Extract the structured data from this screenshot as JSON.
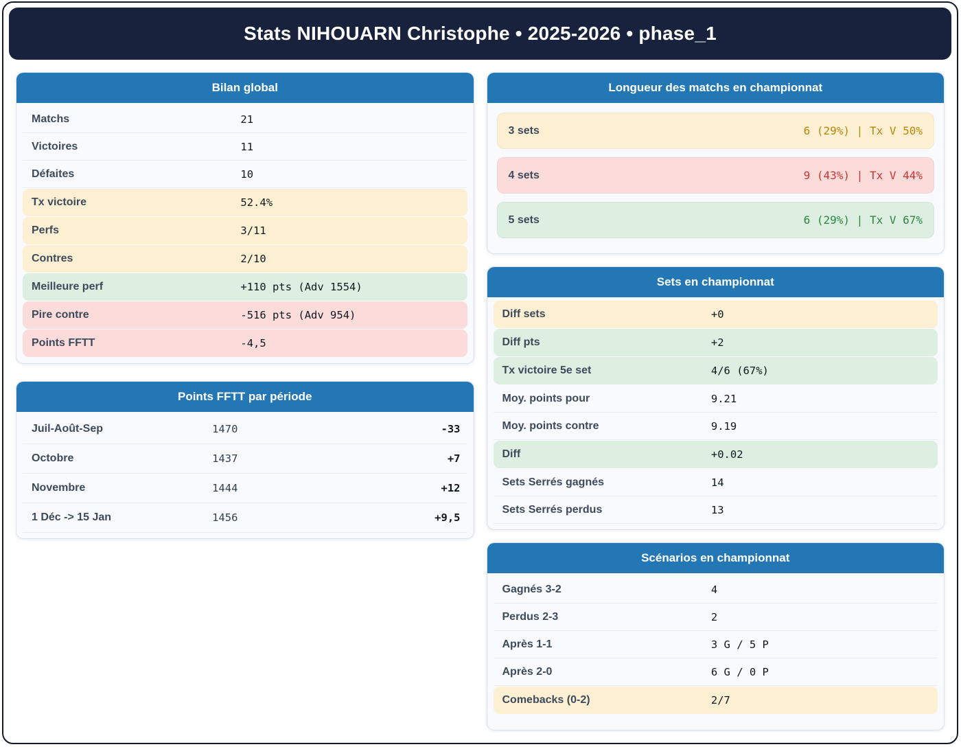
{
  "app": {
    "title": "Stats NIHOUARN Christophe • 2025-2026 • phase_1"
  },
  "colors": {
    "navy": "#18223d",
    "accent_blue": "#2277b4",
    "highlight_yellow": "#fdf0d2",
    "highlight_green": "#dcefe1",
    "highlight_red": "#fcdbdb",
    "text_amber": "#b8860b",
    "text_red": "#cc3333",
    "text_green": "#2e8540"
  },
  "cards": {
    "bilan": {
      "title": "Bilan global",
      "rows": [
        {
          "label": "Matchs",
          "value": "21",
          "tone": "plain"
        },
        {
          "label": "Victoires",
          "value": "11",
          "tone": "plain"
        },
        {
          "label": "Défaites",
          "value": "10",
          "tone": "plain"
        },
        {
          "label": "Tx victoire",
          "value": "52.4%",
          "tone": "yellow"
        },
        {
          "label": "Perfs",
          "value": "3/11",
          "tone": "yellow"
        },
        {
          "label": "Contres",
          "value": "2/10",
          "tone": "yellow"
        },
        {
          "label": "Meilleure perf",
          "value": "+110 pts (Adv 1554)",
          "tone": "green"
        },
        {
          "label": "Pire contre",
          "value": "-516 pts (Adv 954)",
          "tone": "red"
        },
        {
          "label": "Points FFTT",
          "value": "-4,5",
          "tone": "red"
        }
      ]
    },
    "points_periode": {
      "title": "Points FFTT par période",
      "rows": [
        {
          "label": "Juil-Août-Sep",
          "value": "1470",
          "delta": "-33"
        },
        {
          "label": "Octobre",
          "value": "1437",
          "delta": "+7"
        },
        {
          "label": "Novembre",
          "value": "1444",
          "delta": "+12"
        },
        {
          "label": "1 Déc -> 15 Jan",
          "value": "1456",
          "delta": "+9,5"
        }
      ]
    },
    "longueur": {
      "title": "Longueur des matchs en championnat",
      "rows": [
        {
          "label": "3 sets",
          "value": "6 (29%) | Tx V 50%",
          "tone": "yellow"
        },
        {
          "label": "4 sets",
          "value": "9 (43%) | Tx V 44%",
          "tone": "red"
        },
        {
          "label": "5 sets",
          "value": "6 (29%) | Tx V 67%",
          "tone": "green"
        }
      ]
    },
    "sets": {
      "title": "Sets en championnat",
      "rows": [
        {
          "label": "Diff sets",
          "value": "+0",
          "tone": "yellow"
        },
        {
          "label": "Diff pts",
          "value": "+2",
          "tone": "green"
        },
        {
          "label": "Tx victoire 5e set",
          "value": "4/6  (67%)",
          "tone": "green"
        },
        {
          "label": "Moy. points pour",
          "value": "9.21",
          "tone": "plain"
        },
        {
          "label": "Moy. points contre",
          "value": "9.19",
          "tone": "plain"
        },
        {
          "label": "Diff",
          "value": "+0.02",
          "tone": "green"
        },
        {
          "label": "Sets Serrés gagnés",
          "value": "14",
          "tone": "plain"
        },
        {
          "label": "Sets Serrés perdus",
          "value": "13",
          "tone": "plain"
        }
      ]
    },
    "scenarios": {
      "title": "Scénarios en championnat",
      "rows": [
        {
          "label": "Gagnés 3-2",
          "value": "4",
          "tone": "plain"
        },
        {
          "label": "Perdus 2-3",
          "value": "2",
          "tone": "plain"
        },
        {
          "label": "Après 1-1",
          "value": "3 G / 5 P",
          "tone": "plain"
        },
        {
          "label": "Après 2-0",
          "value": "6 G / 0 P",
          "tone": "plain"
        },
        {
          "label": "Comebacks (0-2)",
          "value": "2/7",
          "tone": "yellow"
        }
      ]
    }
  }
}
